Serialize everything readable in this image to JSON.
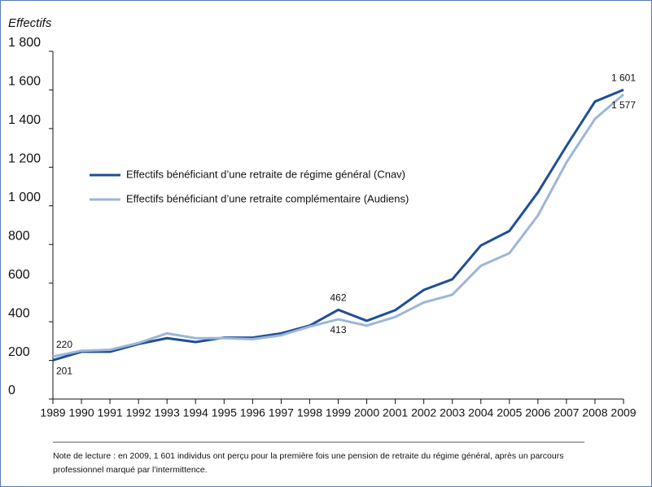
{
  "chart_data": {
    "type": "line",
    "axis_label": "Effectifs",
    "x": [
      1989,
      1990,
      1991,
      1992,
      1993,
      1994,
      1995,
      1996,
      1997,
      1998,
      1999,
      2000,
      2001,
      2002,
      2003,
      2004,
      2005,
      2006,
      2007,
      2008,
      2009
    ],
    "xlim": [
      1989,
      2009
    ],
    "xticks": [
      1989,
      1990,
      1991,
      1992,
      1993,
      1994,
      1995,
      1996,
      1997,
      1998,
      1999,
      2000,
      2001,
      2002,
      2003,
      2004,
      2005,
      2006,
      2007,
      2008,
      2009
    ],
    "ylim": [
      0,
      1800
    ],
    "yticks": [
      0,
      200,
      400,
      600,
      800,
      {
        "value": 1000,
        "label": "1 000"
      },
      {
        "value": 1200,
        "label": "1 200"
      },
      {
        "value": 1400,
        "label": "1 400"
      },
      {
        "value": 1600,
        "label": "1 600"
      },
      {
        "value": 1800,
        "label": "1 800"
      }
    ],
    "series": [
      {
        "name": "Effectifs bénéficiant d’une retraite de régime général (Cnav)",
        "color": "#1f4e96",
        "values": [
          201,
          245,
          245,
          285,
          315,
          295,
          318,
          318,
          340,
          380,
          462,
          405,
          460,
          565,
          620,
          795,
          870,
          1070,
          1310,
          1540,
          1601
        ],
        "value_labels": [
          "201",
          null,
          null,
          null,
          null,
          null,
          null,
          null,
          null,
          null,
          "462",
          null,
          null,
          null,
          null,
          null,
          null,
          null,
          null,
          null,
          "1 601"
        ]
      },
      {
        "name": "Effectifs bénéficiant d’une retraite complémentaire (Audiens)",
        "color": "#9db6d9",
        "values": [
          220,
          250,
          255,
          290,
          340,
          315,
          315,
          310,
          330,
          375,
          413,
          380,
          425,
          500,
          540,
          690,
          755,
          950,
          1225,
          1450,
          1577
        ],
        "value_labels": [
          "220",
          null,
          null,
          null,
          null,
          null,
          null,
          null,
          null,
          null,
          "413",
          null,
          null,
          null,
          null,
          null,
          null,
          null,
          null,
          null,
          "1 577"
        ]
      }
    ],
    "note": [
      "Note de lecture : en 2009, 1 601 individus ont perçu pour la première fois une pension de retraite du régime général, après un parcours",
      "professionnel marqué par l’intermittence."
    ]
  }
}
